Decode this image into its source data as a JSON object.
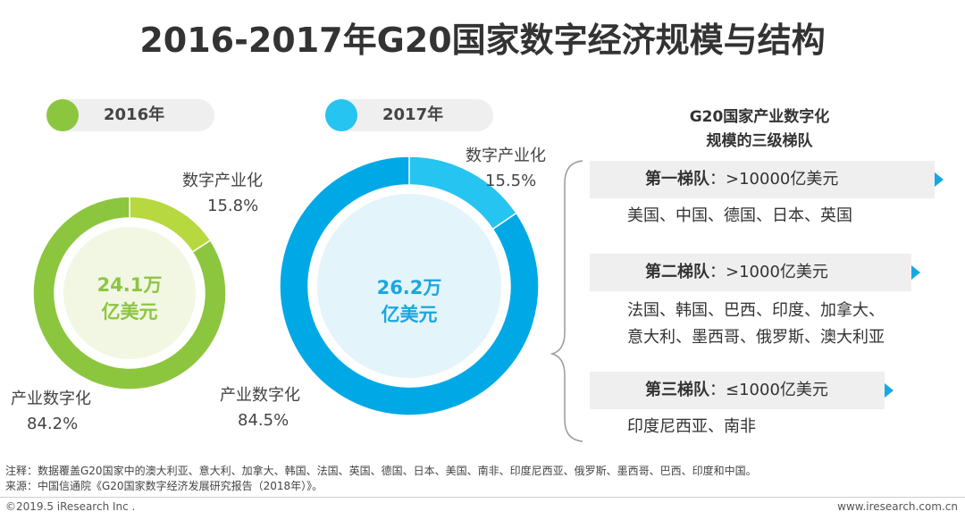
{
  "title": "2016-2017年G20国家数字经济规模与结构",
  "colors": {
    "green_main": "#8cc63f",
    "green_light": "#b7d83f",
    "green_center": "#f2f7e4",
    "green_text": "#8cc63f",
    "blue_main": "#00a9e6",
    "blue_light": "#26c4f0",
    "blue_center": "#e4f4fb",
    "blue_text": "#1aa6e0",
    "chevron": "#14a9e6"
  },
  "chart_data": [
    {
      "type": "pie",
      "legend_label": "2016年",
      "center_line1": "24.1万",
      "center_line2": "亿美元",
      "categories": [
        "数字产业化",
        "产业数字化"
      ],
      "values": [
        15.8,
        84.2
      ],
      "value_labels": [
        "15.8%",
        "84.2%"
      ]
    },
    {
      "type": "pie",
      "legend_label": "2017年",
      "center_line1": "26.2万",
      "center_line2": "亿美元",
      "categories": [
        "数字产业化",
        "产业数字化"
      ],
      "values": [
        15.5,
        84.5
      ],
      "value_labels": [
        "15.5%",
        "84.5%"
      ]
    }
  ],
  "tiers": {
    "title_line1": "G20国家产业数字化",
    "title_line2": "规模的三级梯队",
    "items": [
      {
        "name": "第一梯队",
        "range": "：>10000亿美元",
        "countries": [
          "美国、中国、德国、日本、英国"
        ]
      },
      {
        "name": "第二梯队",
        "range": "：>1000亿美元",
        "countries": [
          "法国、韩国、巴西、印度、加拿大、",
          "意大利、墨西哥、俄罗斯、澳大利亚"
        ]
      },
      {
        "name": "第三梯队",
        "range": "：≤1000亿美元",
        "countries": [
          "印度尼西亚、南非"
        ]
      }
    ]
  },
  "notes": {
    "note": "注释：数据覆盖G20国家中的澳大利亚、意大利、加拿大、韩国、法国、英国、德国、日本、美国、南非、印度尼西亚、俄罗斯、墨西哥、巴西、印度和中国。",
    "source": "来源：中国信通院《G20国家数字经济发展研究报告（2018年）》。"
  },
  "footer": {
    "left": "©2019.5 iResearch Inc .",
    "right": "www.iresearch.com.cn"
  }
}
